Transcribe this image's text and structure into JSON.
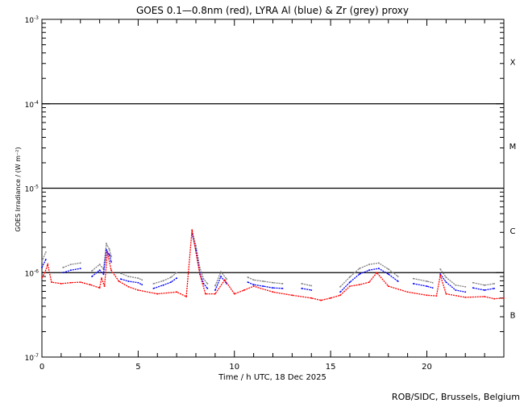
{
  "chart_data": {
    "type": "scatter",
    "title": "GOES 0.1—0.8nm (red), LYRA Al (blue) & Zr (grey) proxy",
    "xlabel": "Time / h UTC, 18 Dec 2025",
    "ylabel": "GOES Irradiance / (W m⁻²)",
    "xlim": [
      0,
      24
    ],
    "ylim": [
      1e-07,
      0.001
    ],
    "yscale": "log",
    "x_ticks": [
      0,
      5,
      10,
      15,
      20
    ],
    "x_tick_labels": [
      "0",
      "5",
      "10",
      "15",
      "20"
    ],
    "y_ticks": [
      1e-07,
      1e-06,
      1e-05,
      0.0001,
      0.001
    ],
    "y_tick_labels": [
      {
        "base": "10",
        "exp": "-7"
      },
      {
        "base": "10",
        "exp": "-6"
      },
      {
        "base": "10",
        "exp": "-5"
      },
      {
        "base": "10",
        "exp": "-4"
      },
      {
        "base": "10",
        "exp": "-3"
      }
    ],
    "reference_lines": [
      1e-06,
      1e-05,
      0.0001
    ],
    "flare_classes": [
      {
        "label": "X",
        "center": 0.000316
      },
      {
        "label": "M",
        "center": 3.16e-05
      },
      {
        "label": "C",
        "center": 3.16e-06
      },
      {
        "label": "B",
        "center": 3.16e-07
      }
    ],
    "series": [
      {
        "name": "GOES 0.1-0.8nm",
        "color": "#ff0000",
        "points": [
          [
            0,
            8.7e-07
          ],
          [
            0.15,
            1e-06
          ],
          [
            0.3,
            1.25e-06
          ],
          [
            0.5,
            7.7e-07
          ],
          [
            1,
            7.4e-07
          ],
          [
            1.5,
            7.6e-07
          ],
          [
            2,
            7.7e-07
          ],
          [
            2.5,
            7.2e-07
          ],
          [
            3,
            6.6e-07
          ],
          [
            3.1,
            8.6e-07
          ],
          [
            3.25,
            6.9e-07
          ],
          [
            3.4,
            1.74e-06
          ],
          [
            3.6,
            1.07e-06
          ],
          [
            4,
            7.9e-07
          ],
          [
            4.5,
            6.8e-07
          ],
          [
            5,
            6.2e-07
          ],
          [
            6,
            5.6e-07
          ],
          [
            7,
            5.9e-07
          ],
          [
            7.5,
            5.2e-07
          ],
          [
            7.8,
            3.2e-06
          ],
          [
            8.2,
            9.6e-07
          ],
          [
            8.5,
            5.6e-07
          ],
          [
            9,
            5.6e-07
          ],
          [
            9.5,
            8.2e-07
          ],
          [
            10,
            5.6e-07
          ],
          [
            10.5,
            6.2e-07
          ],
          [
            11,
            6.9e-07
          ],
          [
            12,
            5.9e-07
          ],
          [
            13,
            5.4e-07
          ],
          [
            14,
            5e-07
          ],
          [
            14.5,
            4.7e-07
          ],
          [
            15,
            5e-07
          ],
          [
            15.5,
            5.4e-07
          ],
          [
            16,
            6.9e-07
          ],
          [
            16.5,
            7.2e-07
          ],
          [
            17,
            7.7e-07
          ],
          [
            17.4,
            1e-06
          ],
          [
            18,
            6.9e-07
          ],
          [
            19,
            5.9e-07
          ],
          [
            20,
            5.4e-07
          ],
          [
            20.5,
            5.3e-07
          ],
          [
            20.7,
            9.3e-07
          ],
          [
            21,
            5.6e-07
          ],
          [
            22,
            5.1e-07
          ],
          [
            23,
            5.2e-07
          ],
          [
            23.5,
            4.9e-07
          ],
          [
            24,
            5e-07
          ]
        ]
      },
      {
        "name": "LYRA Al proxy",
        "color": "#0000ff",
        "points": [
          [
            0,
            1.15e-06
          ],
          [
            0.2,
            1.43e-06
          ],
          [
            0.3,
            null
          ],
          [
            1.1,
            1e-06
          ],
          [
            1.5,
            1.07e-06
          ],
          [
            2,
            1.12e-06
          ],
          [
            2.1,
            null
          ],
          [
            2.6,
            9e-07
          ],
          [
            3,
            1.07e-06
          ],
          [
            3.2,
            9.6e-07
          ],
          [
            3.35,
            1.86e-06
          ],
          [
            3.5,
            1.63e-06
          ],
          [
            3.6,
            1.34e-06
          ],
          [
            3.7,
            null
          ],
          [
            4.1,
            8.4e-07
          ],
          [
            4.5,
            7.9e-07
          ],
          [
            5,
            7.6e-07
          ],
          [
            5.2,
            7.2e-07
          ],
          [
            5.3,
            null
          ],
          [
            5.8,
            6.5e-07
          ],
          [
            6.3,
            7.1e-07
          ],
          [
            6.7,
            7.7e-07
          ],
          [
            7,
            8.6e-07
          ],
          [
            7.1,
            null
          ],
          [
            7.8,
            2.9e-06
          ],
          [
            8,
            1.86e-06
          ],
          [
            8.2,
            1e-06
          ],
          [
            8.4,
            7.4e-07
          ],
          [
            8.6,
            6.5e-07
          ],
          [
            8.7,
            null
          ],
          [
            9,
            6.2e-07
          ],
          [
            9.3,
            9e-07
          ],
          [
            9.6,
            7.4e-07
          ],
          [
            9.7,
            null
          ],
          [
            10.7,
            7.7e-07
          ],
          [
            11,
            7.2e-07
          ],
          [
            11.5,
            6.9e-07
          ],
          [
            12,
            6.6e-07
          ],
          [
            12.5,
            6.5e-07
          ],
          [
            12.6,
            null
          ],
          [
            13.5,
            6.5e-07
          ],
          [
            14,
            6.2e-07
          ],
          [
            14.2,
            null
          ],
          [
            15.5,
            5.9e-07
          ],
          [
            16,
            7.7e-07
          ],
          [
            16.5,
            9.6e-07
          ],
          [
            17,
            1.07e-06
          ],
          [
            17.5,
            1.12e-06
          ],
          [
            18,
            9.6e-07
          ],
          [
            18.5,
            7.9e-07
          ],
          [
            18.6,
            null
          ],
          [
            19.3,
            7.4e-07
          ],
          [
            20,
            6.9e-07
          ],
          [
            20.3,
            6.6e-07
          ],
          [
            20.4,
            null
          ],
          [
            20.7,
            9.6e-07
          ],
          [
            21,
            7.7e-07
          ],
          [
            21.5,
            6.2e-07
          ],
          [
            22,
            5.9e-07
          ],
          [
            22.1,
            null
          ],
          [
            22.4,
            6.6e-07
          ],
          [
            23,
            6.2e-07
          ],
          [
            23.5,
            6.5e-07
          ]
        ]
      },
      {
        "name": "LYRA Zr proxy",
        "color": "#808080",
        "points": [
          [
            0,
            1.35e-06
          ],
          [
            0.2,
            1.75e-06
          ],
          [
            0.3,
            null
          ],
          [
            1.1,
            1.15e-06
          ],
          [
            1.5,
            1.25e-06
          ],
          [
            2,
            1.3e-06
          ],
          [
            2.1,
            null
          ],
          [
            2.6,
            1.05e-06
          ],
          [
            3,
            1.25e-06
          ],
          [
            3.2,
            1.1e-06
          ],
          [
            3.35,
            2.2e-06
          ],
          [
            3.5,
            1.9e-06
          ],
          [
            3.6,
            1.55e-06
          ],
          [
            3.7,
            null
          ],
          [
            4.1,
            9.8e-07
          ],
          [
            4.5,
            9e-07
          ],
          [
            5,
            8.6e-07
          ],
          [
            5.2,
            8.2e-07
          ],
          [
            5.3,
            null
          ],
          [
            5.8,
            7.4e-07
          ],
          [
            6.3,
            8e-07
          ],
          [
            6.7,
            8.8e-07
          ],
          [
            7,
            1e-06
          ],
          [
            7.1,
            null
          ],
          [
            7.8,
            3.1e-06
          ],
          [
            8,
            2.1e-06
          ],
          [
            8.2,
            1.15e-06
          ],
          [
            8.4,
            8.4e-07
          ],
          [
            8.6,
            7.4e-07
          ],
          [
            8.7,
            null
          ],
          [
            9,
            7e-07
          ],
          [
            9.3,
            1.02e-06
          ],
          [
            9.6,
            8.4e-07
          ],
          [
            9.7,
            null
          ],
          [
            10.7,
            8.8e-07
          ],
          [
            11,
            8.2e-07
          ],
          [
            11.5,
            7.9e-07
          ],
          [
            12,
            7.6e-07
          ],
          [
            12.5,
            7.4e-07
          ],
          [
            12.6,
            null
          ],
          [
            13.5,
            7.4e-07
          ],
          [
            14,
            7e-07
          ],
          [
            14.2,
            null
          ],
          [
            15.5,
            6.8e-07
          ],
          [
            16,
            8.9e-07
          ],
          [
            16.5,
            1.12e-06
          ],
          [
            17,
            1.25e-06
          ],
          [
            17.5,
            1.3e-06
          ],
          [
            18,
            1.1e-06
          ],
          [
            18.5,
            9e-07
          ],
          [
            18.6,
            null
          ],
          [
            19.3,
            8.5e-07
          ],
          [
            20,
            7.9e-07
          ],
          [
            20.3,
            7.6e-07
          ],
          [
            20.4,
            null
          ],
          [
            20.7,
            1.1e-06
          ],
          [
            21,
            8.8e-07
          ],
          [
            21.5,
            7.1e-07
          ],
          [
            22,
            6.8e-07
          ],
          [
            22.1,
            null
          ],
          [
            22.4,
            7.6e-07
          ],
          [
            23,
            7.1e-07
          ],
          [
            23.5,
            7.4e-07
          ]
        ]
      }
    ],
    "credit": "ROB/SIDC, Brussels, Belgium"
  }
}
